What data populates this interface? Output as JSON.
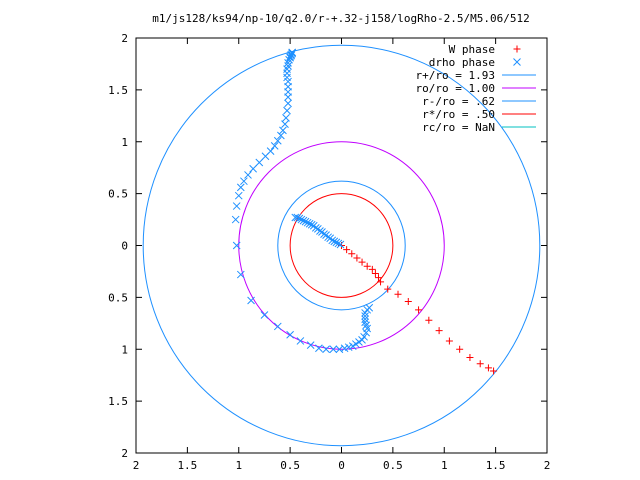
{
  "chart_data": {
    "type": "scatter",
    "title": "m1/js128/ks94/np-10/q2.0/r-+.32-j158/logRho-2.5/M5.06/512",
    "xlim": [
      -2,
      2
    ],
    "ylim": [
      -2,
      2
    ],
    "grid": false,
    "legend_placement": "top-right",
    "xtick_labels": [
      "2",
      "1.5",
      "1",
      "0.5",
      "0",
      "0.5",
      "1",
      "1.5",
      "2"
    ],
    "ytick_labels": [
      "2",
      "1.5",
      "1",
      "0.5",
      "0",
      "0.5",
      "1",
      "1.5",
      "2"
    ],
    "tick_values": [
      -2,
      -1.5,
      -1,
      -0.5,
      0,
      0.5,
      1,
      1.5,
      2
    ],
    "series": [
      {
        "name": "W phase",
        "marker": "plus",
        "color": "#ff0000",
        "x": [
          0.0,
          0.05,
          0.1,
          0.15,
          0.2,
          0.25,
          0.3,
          0.33,
          0.36,
          0.38,
          0.45,
          0.55,
          0.65,
          0.75,
          0.85,
          0.95,
          1.05,
          1.15,
          1.25,
          1.35,
          1.43,
          1.48
        ],
        "y": [
          0.0,
          -0.04,
          -0.08,
          -0.12,
          -0.16,
          -0.2,
          -0.23,
          -0.27,
          -0.31,
          -0.35,
          -0.42,
          -0.47,
          -0.54,
          -0.62,
          -0.72,
          -0.82,
          -0.92,
          -1.0,
          -1.08,
          -1.14,
          -1.18,
          -1.21
        ]
      },
      {
        "name": "drho phase",
        "marker": "cross",
        "color": "#1e90ff",
        "x": [
          -0.45,
          -0.43,
          -0.41,
          -0.39,
          -0.37,
          -0.35,
          -0.33,
          -0.31,
          -0.29,
          -0.27,
          -0.25,
          -0.23,
          -0.21,
          -0.19,
          -0.17,
          -0.15,
          -0.13,
          -0.11,
          -0.09,
          -0.07,
          -0.05,
          -0.03,
          -0.01,
          0.27,
          0.25,
          0.23,
          0.23,
          0.23,
          0.23,
          0.24,
          0.25,
          0.24,
          0.22,
          0.2,
          0.17,
          0.14,
          0.11,
          0.07,
          0.03,
          -0.02,
          -0.08,
          -0.15,
          -0.22,
          -0.3,
          -0.4,
          -0.5,
          -0.62,
          -0.75,
          -0.88,
          -0.98,
          -1.02,
          -1.03,
          -1.02,
          -1.0,
          -0.98,
          -0.95,
          -0.91,
          -0.86,
          -0.8,
          -0.74,
          -0.69,
          -0.65,
          -0.62,
          -0.59,
          -0.57,
          -0.55,
          -0.54,
          -0.53,
          -0.52,
          -0.52,
          -0.52,
          -0.52,
          -0.52,
          -0.53,
          -0.53,
          -0.53,
          -0.52,
          -0.52,
          -0.51,
          -0.5,
          -0.5,
          -0.49,
          -0.49,
          -0.48,
          -0.48,
          -0.48
        ],
        "y": [
          0.27,
          0.27,
          0.26,
          0.25,
          0.24,
          0.23,
          0.22,
          0.21,
          0.2,
          0.19,
          0.17,
          0.16,
          0.14,
          0.13,
          0.11,
          0.1,
          0.08,
          0.07,
          0.05,
          0.04,
          0.03,
          0.02,
          0.01,
          -0.6,
          -0.62,
          -0.65,
          -0.68,
          -0.71,
          -0.74,
          -0.77,
          -0.8,
          -0.84,
          -0.88,
          -0.91,
          -0.93,
          -0.95,
          -0.97,
          -0.98,
          -0.99,
          -1.0,
          -1.0,
          -1.0,
          -0.99,
          -0.96,
          -0.92,
          -0.86,
          -0.78,
          -0.67,
          -0.53,
          -0.28,
          0.0,
          0.25,
          0.38,
          0.48,
          0.56,
          0.62,
          0.68,
          0.74,
          0.8,
          0.86,
          0.91,
          0.96,
          1.01,
          1.06,
          1.11,
          1.17,
          1.23,
          1.3,
          1.37,
          1.43,
          1.48,
          1.53,
          1.58,
          1.62,
          1.66,
          1.7,
          1.73,
          1.76,
          1.79,
          1.81,
          1.82,
          1.83,
          1.84,
          1.85,
          1.86,
          1.86
        ]
      }
    ],
    "circles": [
      {
        "label": "r+/ro = 1.93",
        "radius": 1.93,
        "color": "#1e90ff"
      },
      {
        "label": "ro/ro = 1.00",
        "radius": 1.0,
        "color": "#c000ff"
      },
      {
        "label": "r-/ro = .62",
        "radius": 0.62,
        "color": "#1e90ff"
      },
      {
        "label": "r*/ro = .50",
        "radius": 0.5,
        "color": "#ff0000"
      },
      {
        "label": "rc/ro = NaN",
        "radius": null,
        "color": "#00c0c0"
      }
    ]
  }
}
